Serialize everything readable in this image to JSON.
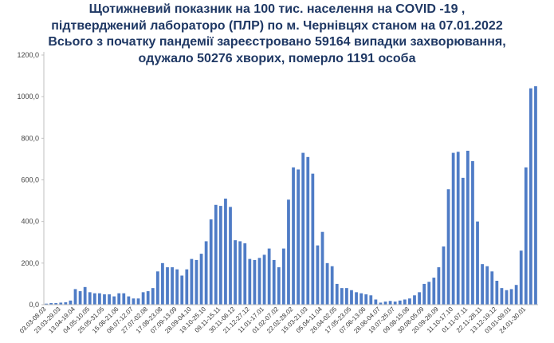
{
  "chart_data": {
    "type": "bar",
    "title_lines": [
      "Щотижневий показник  на 100 тис. населення на COVID -19 ,",
      "підтверджений лабораторо (ПЛР) по м. Чернівцях станом на 07.01.2022",
      "Всього з початку пандемії зареєстровано 59164 випадки захворювання,",
      "одужало 50276 хворих, померло 1191 особа"
    ],
    "xlabel": "",
    "ylabel": "",
    "ylim": [
      0,
      1200
    ],
    "yticks": [
      "0,0",
      "200,0",
      "400,0",
      "600,0",
      "800,0",
      "1000,0",
      "1200,0"
    ],
    "grid": false,
    "color": "#4F7CC6",
    "category_labels": [
      "03.03-08.03",
      "23.03-29.03",
      "13.04-19.04",
      "04.05-10.05",
      "25.05-31.05",
      "15.06-21.06",
      "06.07-12.07",
      "27.07-02.08",
      "17.08-23.08",
      "07.09-13.09",
      "28.09-04.10",
      "19.10-25.10",
      "09.11-15.11",
      "30.11-06.12",
      "21.12-27.12",
      "11.01-17.01",
      "01.02-07.02",
      "22.02-28.02",
      "15.03-21.03",
      "05.04-11.04",
      "26.04-02.05",
      "17.05-23.05",
      "07.06-13.06",
      "28.06-04.07",
      "19.07-25.07",
      "09.08-15.08",
      "30.08-05.09",
      "20.09-26.09",
      "11.10-17.10",
      "01.11-07.11",
      "22.11-28.11",
      "13.12-19.12",
      "03.01-09.01",
      "24.01-30.01"
    ],
    "values": [
      5,
      8,
      8,
      10,
      12,
      20,
      75,
      65,
      85,
      60,
      55,
      55,
      50,
      50,
      40,
      55,
      55,
      40,
      30,
      30,
      60,
      65,
      80,
      160,
      200,
      180,
      180,
      170,
      140,
      170,
      220,
      215,
      245,
      305,
      410,
      480,
      475,
      510,
      470,
      310,
      305,
      295,
      220,
      215,
      225,
      240,
      270,
      215,
      180,
      270,
      505,
      660,
      650,
      730,
      710,
      630,
      285,
      350,
      200,
      185,
      100,
      80,
      80,
      70,
      60,
      55,
      50,
      45,
      25,
      10,
      15,
      18,
      15,
      20,
      25,
      30,
      45,
      60,
      100,
      110,
      130,
      180,
      280,
      555,
      730,
      735,
      610,
      740,
      690,
      400,
      195,
      185,
      160,
      115,
      80,
      70,
      75,
      95,
      260,
      660,
      1040,
      1050
    ]
  }
}
